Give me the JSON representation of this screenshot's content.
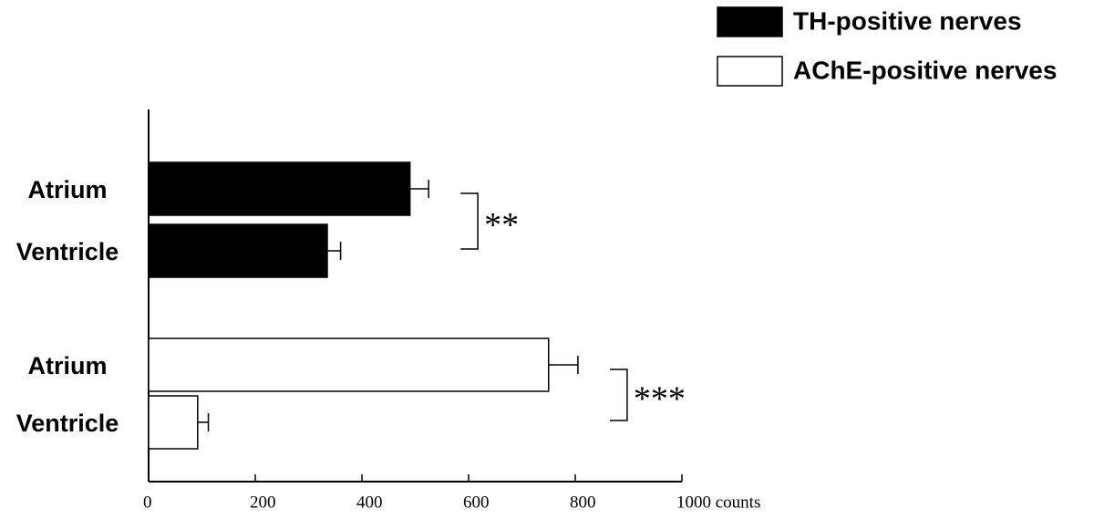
{
  "chart_data": {
    "type": "bar",
    "orientation": "horizontal",
    "series": [
      {
        "name": "TH-positive nerves",
        "color": "#000000",
        "categories": [
          "Atrium",
          "Ventricle"
        ],
        "values": [
          490,
          335
        ],
        "errors": [
          35,
          25
        ],
        "annotation": "**"
      },
      {
        "name": "AChE-positive nerves",
        "color": "#ffffff",
        "categories": [
          "Atrium",
          "Ventricle"
        ],
        "values": [
          750,
          92
        ],
        "errors": [
          55,
          20
        ],
        "annotation": "***"
      }
    ],
    "xlim": [
      0,
      1000
    ],
    "xticks": [
      0,
      200,
      400,
      600,
      800,
      {
        "value": 1000,
        "label": "1000 counts"
      }
    ],
    "legend": "upper right"
  }
}
